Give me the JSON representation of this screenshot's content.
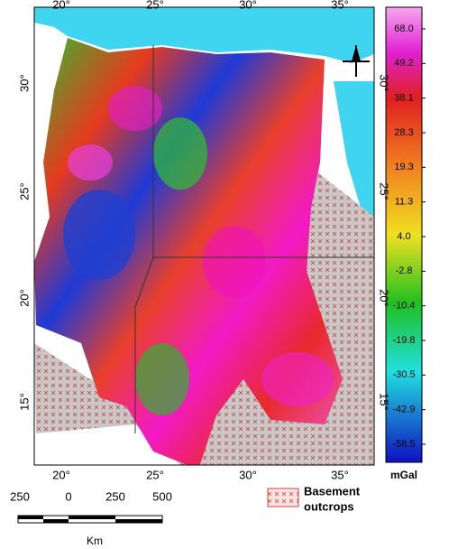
{
  "map": {
    "x_labels": [
      "20°",
      "25°",
      "30°",
      "35°"
    ],
    "y_labels": [
      "30°",
      "25°",
      "20°",
      "15°"
    ]
  },
  "colorbar": {
    "labels": [
      "68.0",
      "49.2",
      "38.1",
      "28.3",
      "19.3",
      "11.3",
      "4.0",
      "-2.8",
      "-10.4",
      "-19.8",
      "-30.5",
      "-42.9",
      "-58.5"
    ],
    "unit": "mGal"
  },
  "scale_bar": {
    "labels": [
      "250",
      "0",
      "250",
      "500"
    ],
    "unit": "Km"
  },
  "legend": {
    "label_lines": [
      "Basement",
      "outcrops"
    ]
  }
}
